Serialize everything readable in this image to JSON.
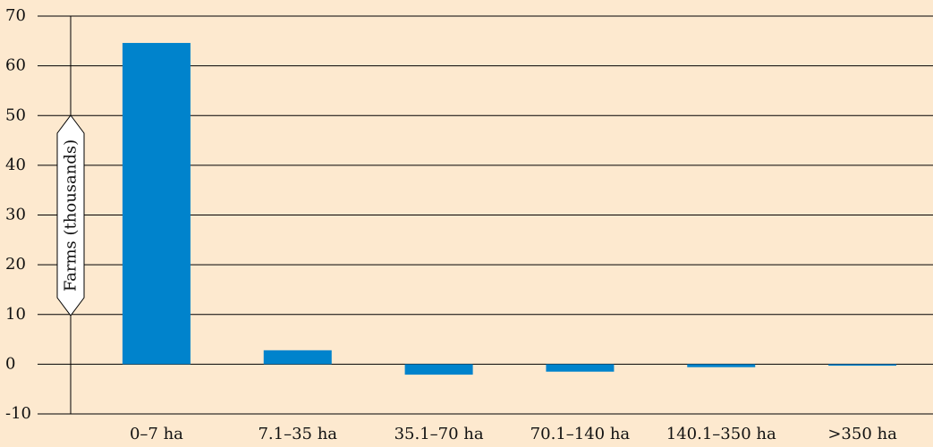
{
  "chart_data": {
    "type": "bar",
    "title": "",
    "xlabel": "",
    "ylabel": "Farms (thousands)",
    "categories": [
      "0–7 ha",
      "7.1–35 ha",
      "35.1–70 ha",
      "70.1–140 ha",
      "140.1–350 ha",
      ">350 ha"
    ],
    "values": [
      64.6,
      2.8,
      -2.1,
      -1.5,
      -0.6,
      -0.3
    ],
    "ylim": [
      -10,
      70
    ],
    "yticks": [
      "-10",
      "0",
      "10",
      "20",
      "30",
      "40",
      "50",
      "60",
      "70"
    ],
    "grid": true,
    "legend": "none",
    "colors": {
      "bar": "#0083cc",
      "background": "#fde9cf",
      "grid": "#000000"
    }
  }
}
